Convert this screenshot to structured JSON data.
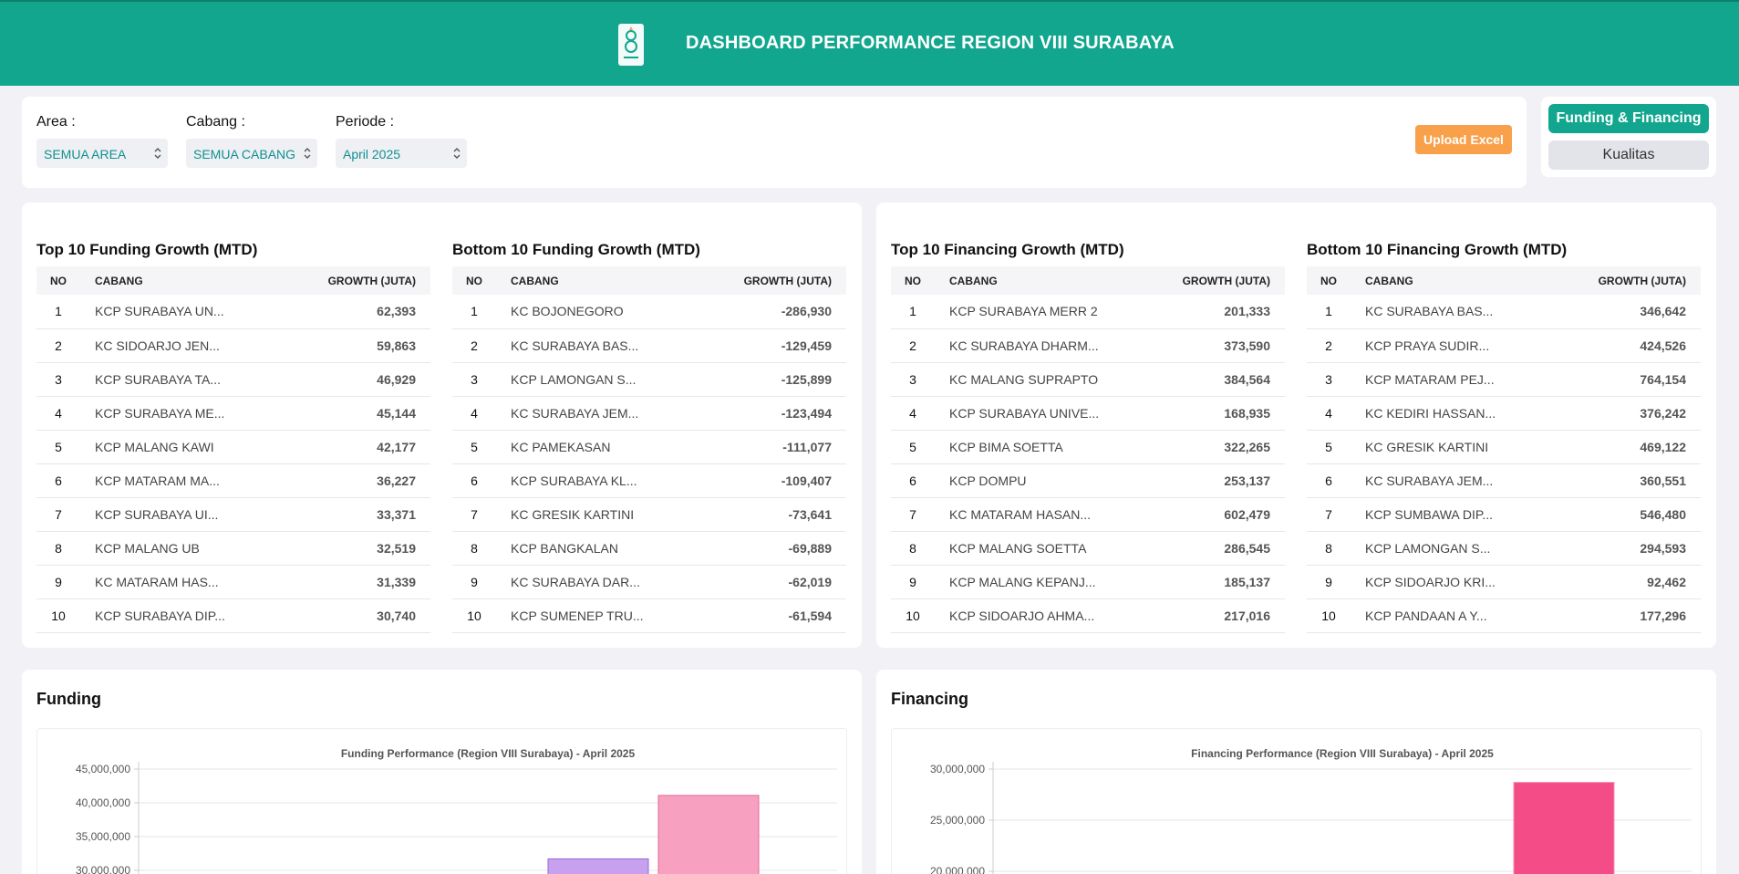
{
  "header": {
    "title": "DASHBOARD PERFORMANCE REGION VIII SURABAYA",
    "logo_icon": "bank-logo"
  },
  "filters": {
    "area": {
      "label": "Area :",
      "value": "SEMUA AREA"
    },
    "cabang": {
      "label": "Cabang :",
      "value": "SEMUA CABANG"
    },
    "periode": {
      "label": "Periode :",
      "value": "April 2025"
    },
    "upload_label": "Upload Excel"
  },
  "tabs": {
    "active": "Funding & Financing",
    "inactive": "Kualitas"
  },
  "tables": {
    "col_no": "NO",
    "col_cabang": "CABANG",
    "col_growth": "GROWTH (JUTA)",
    "top_funding": {
      "title": "Top 10 Funding Growth (MTD)",
      "rows": [
        [
          "1",
          "KCP SURABAYA UN...",
          "62,393"
        ],
        [
          "2",
          "KC SIDOARJO JEN...",
          "59,863"
        ],
        [
          "3",
          "KCP SURABAYA TA...",
          "46,929"
        ],
        [
          "4",
          "KCP SURABAYA ME...",
          "45,144"
        ],
        [
          "5",
          "KCP MALANG KAWI",
          "42,177"
        ],
        [
          "6",
          "KCP MATARAM MA...",
          "36,227"
        ],
        [
          "7",
          "KCP SURABAYA UI...",
          "33,371"
        ],
        [
          "8",
          "KCP MALANG UB",
          "32,519"
        ],
        [
          "9",
          "KC MATARAM HAS...",
          "31,339"
        ],
        [
          "10",
          "KCP SURABAYA DIP...",
          "30,740"
        ]
      ]
    },
    "bottom_funding": {
      "title": "Bottom 10 Funding Growth (MTD)",
      "rows": [
        [
          "1",
          "KC BOJONEGORO",
          "-286,930"
        ],
        [
          "2",
          "KC SURABAYA BAS...",
          "-129,459"
        ],
        [
          "3",
          "KCP LAMONGAN S...",
          "-125,899"
        ],
        [
          "4",
          "KC SURABAYA JEM...",
          "-123,494"
        ],
        [
          "5",
          "KC PAMEKASAN",
          "-111,077"
        ],
        [
          "6",
          "KCP SURABAYA KL...",
          "-109,407"
        ],
        [
          "7",
          "KC GRESIK KARTINI",
          "-73,641"
        ],
        [
          "8",
          "KCP BANGKALAN",
          "-69,889"
        ],
        [
          "9",
          "KC SURABAYA DAR...",
          "-62,019"
        ],
        [
          "10",
          "KCP SUMENEP TRU...",
          "-61,594"
        ]
      ]
    },
    "top_financing": {
      "title": "Top 10 Financing Growth (MTD)",
      "rows": [
        [
          "1",
          "KCP SURABAYA MERR 2",
          "201,333"
        ],
        [
          "2",
          "KC SURABAYA DHARM...",
          "373,590"
        ],
        [
          "3",
          "KC MALANG SUPRAPTO",
          "384,564"
        ],
        [
          "4",
          "KCP SURABAYA UNIVE...",
          "168,935"
        ],
        [
          "5",
          "KCP BIMA SOETTA",
          "322,265"
        ],
        [
          "6",
          "KCP DOMPU",
          "253,137"
        ],
        [
          "7",
          "KC MATARAM HASAN...",
          "602,479"
        ],
        [
          "8",
          "KCP MALANG SOETTA",
          "286,545"
        ],
        [
          "9",
          "KCP MALANG KEPANJ...",
          "185,137"
        ],
        [
          "10",
          "KCP SIDOARJO AHMA...",
          "217,016"
        ]
      ]
    },
    "bottom_financing": {
      "title": "Bottom 10 Financing Growth (MTD)",
      "rows": [
        [
          "1",
          "KC SURABAYA BAS...",
          "346,642"
        ],
        [
          "2",
          "KCP PRAYA SUDIR...",
          "424,526"
        ],
        [
          "3",
          "KCP MATARAM PEJ...",
          "764,154"
        ],
        [
          "4",
          "KC KEDIRI HASSAN...",
          "376,242"
        ],
        [
          "5",
          "KC GRESIK KARTINI",
          "469,122"
        ],
        [
          "6",
          "KC SURABAYA JEM...",
          "360,551"
        ],
        [
          "7",
          "KCP SUMBAWA DIP...",
          "546,480"
        ],
        [
          "8",
          "KCP LAMONGAN S...",
          "294,593"
        ],
        [
          "9",
          "KCP SIDOARJO KRI...",
          "92,462"
        ],
        [
          "10",
          "KCP PANDAAN A Y...",
          "177,296"
        ]
      ]
    }
  },
  "charts": {
    "funding": {
      "card_title": "Funding"
    },
    "financing": {
      "card_title": "Financing"
    }
  },
  "chart_data": [
    {
      "type": "bar",
      "title": "Funding Performance (Region VIII Surabaya) - April 2025",
      "y_ticks": [
        45000000,
        40000000,
        35000000,
        30000000
      ],
      "y_tick_labels": [
        "45,000,000",
        "40,000,000",
        "35,000,000",
        "30,000,000"
      ],
      "ylim": [
        30000000,
        45000000
      ],
      "bars": [
        {
          "value": 31700000,
          "color": "#c7a0ef",
          "border": "#9a6ad6"
        },
        {
          "value": 41100000,
          "color": "#f7a0c0",
          "border": "#e06b97"
        }
      ]
    },
    {
      "type": "bar",
      "title": "Financing Performance (Region VIII Surabaya) - April 2025",
      "y_ticks": [
        30000000,
        25000000,
        20000000
      ],
      "y_tick_labels": [
        "30,000,000",
        "25,000,000",
        "20,000,000"
      ],
      "ylim": [
        20000000,
        30000000
      ],
      "bars": [
        {
          "value": 28700000,
          "color": "#f34c86",
          "border": "#f58fb4"
        }
      ]
    }
  ]
}
